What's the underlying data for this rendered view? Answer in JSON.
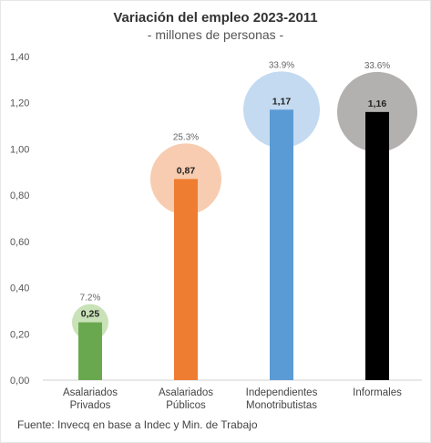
{
  "title": "Variación del empleo 2023-2011",
  "subtitle": "- millones de personas -",
  "source": "Fuente: Invecq en base a Indec y Min. de Trabajo",
  "chart_data": {
    "type": "bar",
    "categories": [
      [
        "Asalariados",
        "Privados"
      ],
      [
        "Asalariados",
        "Públicos"
      ],
      [
        "Independientes",
        "Monotributistas"
      ],
      [
        "Informales"
      ]
    ],
    "values": [
      0.25,
      0.87,
      1.17,
      1.16
    ],
    "value_labels": [
      "0,25",
      "0,87",
      "1,17",
      "1,16"
    ],
    "percent_labels": [
      "7.2%",
      "25.3%",
      "33.9%",
      "33.6%"
    ],
    "percent_values": [
      7.2,
      25.3,
      33.9,
      33.6
    ],
    "bar_colors": [
      "#6aa84f",
      "#ef7d31",
      "#5b9bd5",
      "#000000"
    ],
    "circle_colors": [
      "#c9e2b8",
      "#f7ccb0",
      "#c3daf0",
      "#b3b0b0"
    ],
    "ylim": [
      0,
      1.4
    ],
    "yticks": [
      0,
      0.2,
      0.4,
      0.6,
      0.8,
      1.0,
      1.2,
      1.4
    ],
    "ytick_labels": [
      "0,00",
      "0,20",
      "0,40",
      "0,60",
      "0,80",
      "1,00",
      "1,20",
      "1,40"
    ],
    "grid": false,
    "xlabel": "",
    "ylabel": ""
  }
}
